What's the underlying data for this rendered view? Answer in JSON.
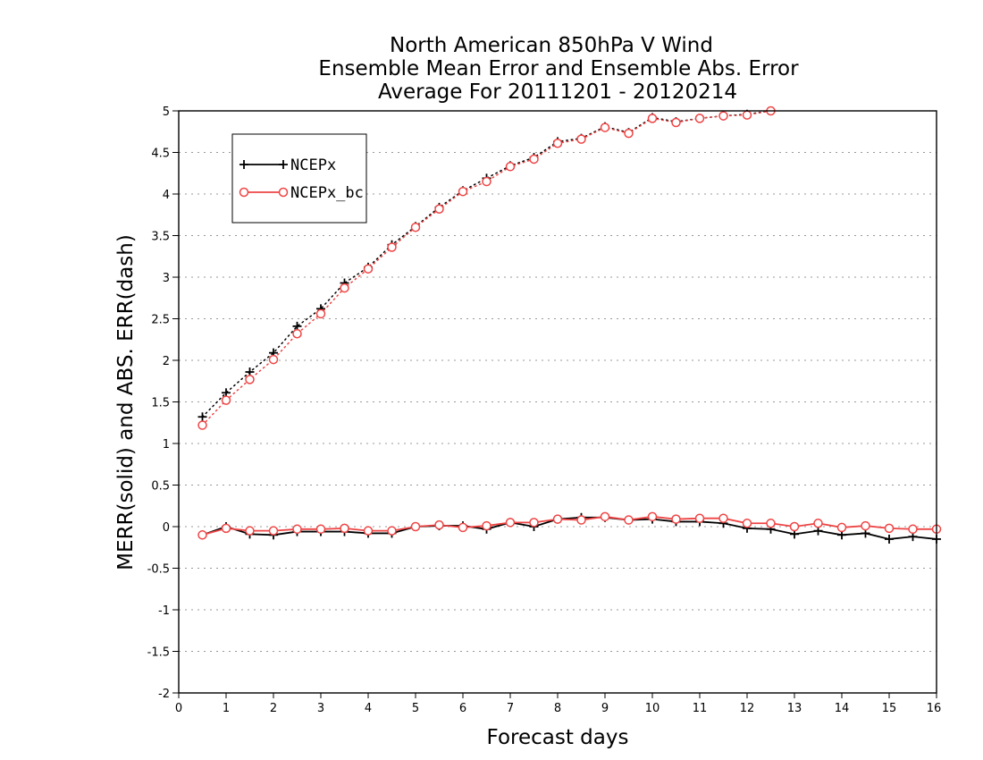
{
  "chart_data": {
    "type": "line",
    "title_lines": [
      "North American 850hPa V Wind",
      "Ensemble Mean Error and Ensemble Abs. Error",
      "Average For 20111201 - 20120214"
    ],
    "xlabel": "Forecast days",
    "ylabel": "MERR(solid) and ABS. ERR(dash)",
    "xlim": [
      0,
      16
    ],
    "ylim": [
      -2,
      5
    ],
    "x_ticks": [
      0,
      1,
      2,
      3,
      4,
      5,
      6,
      7,
      8,
      9,
      10,
      11,
      12,
      13,
      14,
      15,
      16
    ],
    "y_ticks": [
      -2,
      -1.5,
      -1,
      -0.5,
      0,
      0.5,
      1,
      1.5,
      2,
      2.5,
      3,
      3.5,
      4,
      4.5,
      5
    ],
    "y_tick_labels": [
      "-2",
      "-1.5",
      "-1",
      "-0.5",
      "0",
      "0.5",
      "1",
      "1.5",
      "2",
      "2.5",
      "3",
      "3.5",
      "4",
      "4.5",
      "5"
    ],
    "grid": "horizontal dotted",
    "legend_position": "top-left",
    "x": [
      0.5,
      1,
      1.5,
      2,
      2.5,
      3,
      3.5,
      4,
      4.5,
      5,
      5.5,
      6,
      6.5,
      7,
      7.5,
      8,
      8.5,
      9,
      9.5,
      10,
      10.5,
      11,
      11.5,
      12,
      12.5,
      13,
      13.5,
      14,
      14.5,
      15,
      15.5,
      16
    ],
    "series": [
      {
        "name": "NCEPx",
        "color": "#000000",
        "marker": "plus",
        "mean_error": [
          -0.1,
          0.0,
          -0.09,
          -0.1,
          -0.06,
          -0.06,
          -0.06,
          -0.08,
          -0.08,
          0.0,
          0.01,
          0.01,
          -0.03,
          0.05,
          0.0,
          0.09,
          0.11,
          0.11,
          0.08,
          0.09,
          0.06,
          0.06,
          0.04,
          -0.02,
          -0.03,
          -0.09,
          -0.05,
          -0.1,
          -0.08,
          -0.15,
          -0.12,
          -0.15
        ],
        "abs_error": [
          1.32,
          1.61,
          1.86,
          2.09,
          2.41,
          2.62,
          2.93,
          3.12,
          3.39,
          3.61,
          3.84,
          4.04,
          4.19,
          4.34,
          4.44,
          4.63,
          4.67,
          4.81,
          4.74,
          4.92,
          4.87,
          4.91,
          4.94,
          4.96,
          5.0,
          null,
          null,
          null,
          null,
          null,
          null,
          null
        ]
      },
      {
        "name": "NCEPx_bc",
        "color": "#ee4444",
        "marker": "circle",
        "mean_error": [
          -0.1,
          -0.02,
          -0.05,
          -0.05,
          -0.03,
          -0.03,
          -0.02,
          -0.05,
          -0.05,
          0.0,
          0.02,
          -0.01,
          0.01,
          0.05,
          0.05,
          0.09,
          0.08,
          0.12,
          0.08,
          0.12,
          0.09,
          0.1,
          0.1,
          0.04,
          0.04,
          0.0,
          0.04,
          -0.01,
          0.01,
          -0.02,
          -0.03,
          -0.03
        ],
        "abs_error": [
          1.22,
          1.52,
          1.77,
          2.01,
          2.32,
          2.56,
          2.87,
          3.1,
          3.36,
          3.6,
          3.82,
          4.03,
          4.15,
          4.33,
          4.42,
          4.61,
          4.66,
          4.8,
          4.73,
          4.91,
          4.86,
          4.91,
          4.94,
          4.95,
          5.0,
          null,
          null,
          null,
          null,
          null,
          null,
          null
        ]
      }
    ]
  }
}
